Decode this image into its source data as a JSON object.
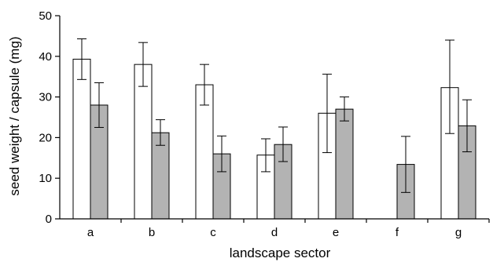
{
  "chart_data": {
    "type": "bar",
    "title": "",
    "xlabel": "landscape sector",
    "ylabel": "seed weight / capsule (mg)",
    "categories": [
      "a",
      "b",
      "c",
      "d",
      "e",
      "f",
      "g"
    ],
    "ylim": [
      0,
      50
    ],
    "yticks": [
      0,
      10,
      20,
      30,
      40,
      50
    ],
    "grid": false,
    "legend": "none",
    "series": [
      {
        "values": [
          39.3,
          38.0,
          33.0,
          15.7,
          26.0,
          null,
          32.3
        ],
        "error_low": [
          34.3,
          32.6,
          28.0,
          11.6,
          16.3,
          null,
          21.0
        ],
        "error_high": [
          44.3,
          43.4,
          38.0,
          19.7,
          35.6,
          null,
          44.0
        ],
        "color": "#ffffff"
      },
      {
        "values": [
          28.0,
          21.2,
          16.0,
          18.3,
          27.0,
          13.4,
          22.9
        ],
        "error_low": [
          22.5,
          18.1,
          11.6,
          14.1,
          24.1,
          6.5,
          16.5
        ],
        "error_high": [
          33.5,
          24.4,
          20.4,
          22.6,
          30.0,
          20.3,
          29.3
        ],
        "color": "#b3b3b3"
      }
    ]
  }
}
